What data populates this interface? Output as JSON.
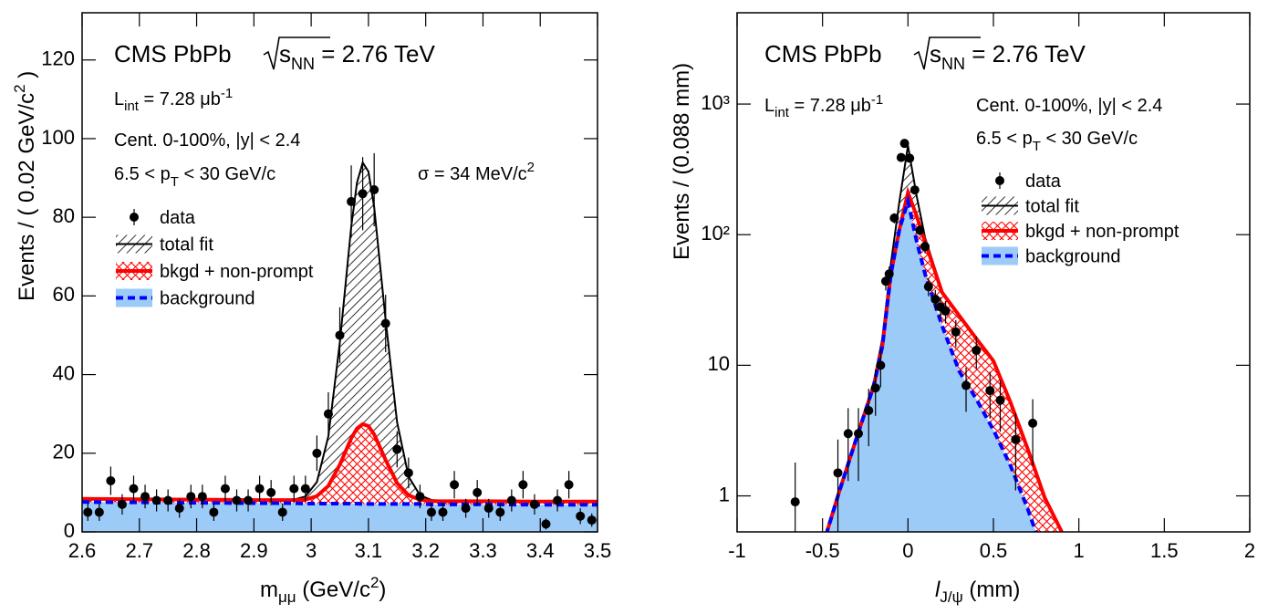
{
  "chart_data": [
    {
      "type": "fit",
      "log": false,
      "grid": false,
      "xlim": [
        2.6,
        3.5
      ],
      "xticks": [
        2.6,
        2.7,
        2.8,
        2.9,
        3,
        3.1,
        3.2,
        3.3,
        3.4,
        3.5
      ],
      "ylim": [
        0,
        132
      ],
      "yticks": [
        0,
        20,
        40,
        60,
        80,
        100,
        120
      ],
      "xlabel": [
        "m",
        "μμ",
        " (GeV/c",
        "2",
        ")"
      ],
      "ylabel": [
        "Events / ( 0.02 GeV/c",
        "2",
        " )"
      ],
      "annotations": {
        "experiment": "CMS PbPb",
        "energy": [
          "s",
          "NN",
          " = 2.76 TeV"
        ],
        "lumi": [
          "L",
          "int",
          " =  7.28 μb",
          "-1"
        ],
        "selection": "Cent. 0-100%, |y| < 2.4",
        "pt": [
          "6.5 < p",
          "T",
          " < 30 GeV/c"
        ],
        "width": [
          "σ = 34 MeV/c",
          "2"
        ]
      },
      "series": [
        {
          "name": "data",
          "style": "points",
          "color": "#000000",
          "x": [
            2.61,
            2.63,
            2.65,
            2.67,
            2.69,
            2.71,
            2.73,
            2.75,
            2.77,
            2.79,
            2.81,
            2.83,
            2.85,
            2.87,
            2.89,
            2.91,
            2.93,
            2.95,
            2.97,
            2.99,
            3.01,
            3.03,
            3.05,
            3.07,
            3.09,
            3.11,
            3.13,
            3.15,
            3.17,
            3.19,
            3.21,
            3.23,
            3.25,
            3.27,
            3.29,
            3.31,
            3.33,
            3.35,
            3.37,
            3.39,
            3.41,
            3.43,
            3.45,
            3.47,
            3.49
          ],
          "values": [
            5,
            5,
            13,
            7,
            11,
            9,
            8,
            8,
            6,
            9,
            9,
            5,
            11,
            8,
            8,
            11,
            10,
            5,
            11,
            11,
            20,
            30,
            50,
            84,
            86,
            87,
            53,
            21,
            15,
            9,
            5,
            5,
            12,
            6,
            10,
            6,
            5,
            8,
            12,
            7,
            2,
            8,
            12,
            4,
            3
          ],
          "yerr": [
            2.2,
            2.2,
            3.6,
            2.6,
            3.3,
            3,
            2.8,
            2.8,
            2.4,
            3,
            3,
            2.2,
            3.3,
            2.8,
            2.8,
            3.3,
            3.2,
            2.2,
            3.3,
            3.3,
            4.5,
            5.5,
            7.1,
            9.2,
            9.3,
            9.3,
            7.3,
            4.6,
            3.9,
            3,
            2.2,
            2.2,
            3.5,
            2.4,
            3.2,
            2.4,
            2.2,
            2.8,
            3.5,
            2.6,
            1.4,
            2.8,
            3.5,
            2,
            1.7
          ]
        },
        {
          "name": "total fit",
          "style": "hatch",
          "color": "#000000",
          "x": [
            2.6,
            2.7,
            2.8,
            2.9,
            2.95,
            2.97,
            2.99,
            3.01,
            3.03,
            3.05,
            3.07,
            3.08,
            3.09,
            3.1,
            3.11,
            3.13,
            3.15,
            3.17,
            3.19,
            3.21,
            3.25,
            3.3,
            3.4,
            3.5
          ],
          "values": [
            8.4,
            8.3,
            8.2,
            8.1,
            8.1,
            8.2,
            9.0,
            12.7,
            24.3,
            48.1,
            77.7,
            88.8,
            93.9,
            91.6,
            82.6,
            53.9,
            27.9,
            14.1,
            9.3,
            8.1,
            7.8,
            7.8,
            7.7,
            7.7
          ]
        },
        {
          "name": "bkgd + non-prompt",
          "style": "crosshatch",
          "color": "#ff0000",
          "x": [
            2.6,
            2.7,
            2.8,
            2.9,
            2.95,
            2.97,
            2.99,
            3.01,
            3.03,
            3.05,
            3.07,
            3.08,
            3.09,
            3.1,
            3.11,
            3.13,
            3.15,
            3.17,
            3.19,
            3.21,
            3.25,
            3.3,
            3.4,
            3.5
          ],
          "values": [
            8.4,
            8.3,
            8.2,
            8.1,
            8.1,
            8.1,
            8.2,
            9.1,
            11.7,
            17.1,
            23.8,
            26.3,
            27.4,
            26.9,
            24.8,
            18.3,
            12.4,
            9.3,
            8.2,
            7.8,
            7.8,
            7.8,
            7.7,
            7.7
          ]
        },
        {
          "name": "background",
          "style": "band",
          "color": "#0000ff",
          "fill": "#9ccbf8",
          "x": [
            2.6,
            2.7,
            2.8,
            2.9,
            2.95,
            2.97,
            2.99,
            3.01,
            3.03,
            3.05,
            3.07,
            3.08,
            3.09,
            3.1,
            3.11,
            3.13,
            3.15,
            3.17,
            3.19,
            3.21,
            3.25,
            3.3,
            3.4,
            3.5
          ],
          "values": [
            7.6,
            7.5,
            7.4,
            7.3,
            7.3,
            7.3,
            7.2,
            7.2,
            7.2,
            7.2,
            7.2,
            7.2,
            7.1,
            7.1,
            7.1,
            7.1,
            7.1,
            7.1,
            7.1,
            7.0,
            7.0,
            7.0,
            6.9,
            6.9
          ]
        }
      ]
    },
    {
      "type": "fit",
      "log": true,
      "grid": false,
      "xlim": [
        -1,
        2
      ],
      "xticks": [
        -1,
        -0.5,
        0,
        0.5,
        1,
        1.5,
        2
      ],
      "ylim": [
        0.53,
        5000
      ],
      "yticks": [
        1,
        10,
        {
          "value": 100,
          "label": "10²"
        },
        {
          "value": 1000,
          "label": "10³"
        }
      ],
      "xlabel": [
        "l",
        "J/ψ",
        " (mm)"
      ],
      "ylabel": [
        "Events / (0.088 mm)"
      ],
      "annotations": {
        "experiment": "CMS PbPb",
        "energy": [
          "s",
          "NN",
          " = 2.76 TeV"
        ],
        "lumi": [
          "L",
          "int",
          " =  7.28 μb",
          "-1"
        ],
        "selection": "Cent. 0-100%, |y| < 2.4",
        "pt": [
          "6.5 < p",
          "T",
          " < 30 GeV/c"
        ]
      },
      "series": [
        {
          "name": "data",
          "style": "points",
          "color": "#000000",
          "x": [
            -0.66,
            -0.41,
            -0.35,
            -0.29,
            -0.23,
            -0.19,
            -0.16,
            -0.13,
            -0.11,
            -0.08,
            -0.04,
            -0.02,
            0.01,
            0.04,
            0.07,
            0.1,
            0.12,
            0.16,
            0.19,
            0.22,
            0.28,
            0.34,
            0.4,
            0.48,
            0.54,
            0.63,
            0.73
          ],
          "values": [
            0.9,
            1.5,
            3,
            3,
            4.5,
            6.7,
            10,
            44,
            50,
            134,
            390,
            500,
            385,
            220,
            108,
            81,
            40,
            32,
            28,
            26,
            18,
            7,
            13,
            6.4,
            5.4,
            2.7,
            3.6
          ],
          "yerr": [
            0.9,
            1.2,
            1.7,
            1.7,
            2.1,
            2.6,
            3.2,
            6.6,
            7,
            12,
            20,
            22,
            20,
            15,
            10,
            9,
            6.3,
            5.7,
            5.3,
            5.1,
            4.2,
            2.6,
            3.6,
            2.5,
            2.3,
            1.6,
            1.9
          ]
        },
        {
          "name": "total fit",
          "style": "hatch",
          "color": "#000000",
          "x": [
            -0.48,
            -0.4,
            -0.3,
            -0.2,
            -0.15,
            -0.1,
            -0.05,
            0,
            0.05,
            0.1,
            0.2,
            0.3,
            0.4,
            0.5,
            0.6,
            0.7,
            0.8,
            0.9
          ],
          "values": [
            0.5,
            1.1,
            2.8,
            7.5,
            16,
            60,
            180,
            480,
            200,
            95,
            37,
            24,
            16,
            10.8,
            5.2,
            2.3,
            0.97,
            0.53
          ]
        },
        {
          "name": "bkgd + non-prompt",
          "style": "crosshatch",
          "color": "#ff0000",
          "x": [
            -0.48,
            -0.4,
            -0.3,
            -0.2,
            -0.15,
            -0.1,
            -0.05,
            0,
            0.05,
            0.1,
            0.2,
            0.3,
            0.4,
            0.5,
            0.6,
            0.7,
            0.8,
            0.9
          ],
          "values": [
            0.5,
            1.1,
            2.8,
            7,
            14,
            50,
            110,
            210,
            140,
            88,
            36,
            24,
            16,
            10.8,
            5.2,
            2.3,
            0.97,
            0.53
          ]
        },
        {
          "name": "background",
          "style": "band",
          "color": "#0000ff",
          "fill": "#9ccbf8",
          "x": [
            -0.48,
            -0.4,
            -0.3,
            -0.2,
            -0.15,
            -0.1,
            -0.05,
            0,
            0.05,
            0.1,
            0.2,
            0.3,
            0.4,
            0.5,
            0.6,
            0.7,
            0.75
          ],
          "values": [
            0.5,
            1.1,
            2.8,
            7,
            14,
            50,
            110,
            180,
            90,
            50,
            20,
            9,
            5.5,
            3.2,
            1.7,
            0.8,
            0.52
          ]
        }
      ]
    }
  ]
}
